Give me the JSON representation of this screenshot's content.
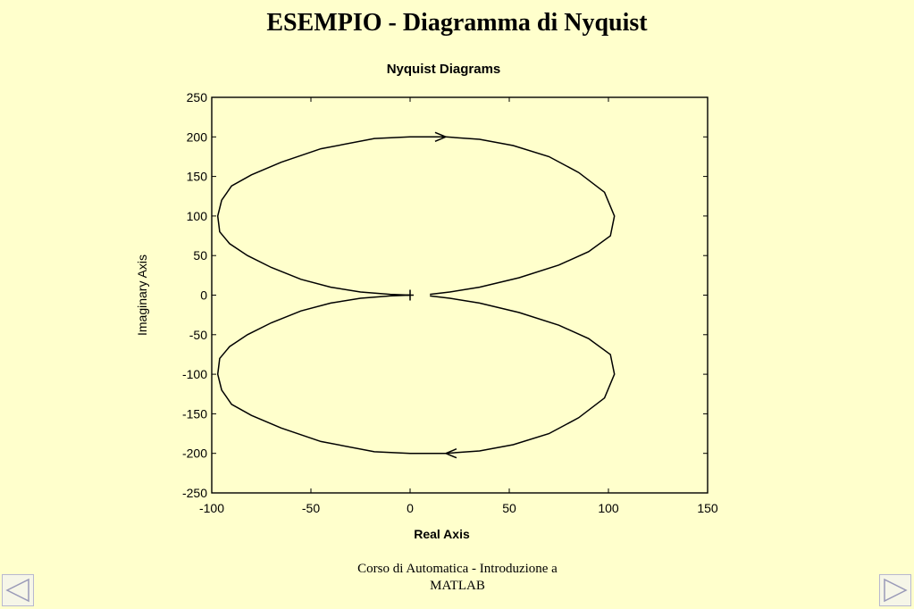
{
  "slide": {
    "title": "ESEMPIO - Diagramma di Nyquist",
    "footer_line1": "Corso di Automatica - Introduzione a",
    "footer_line2": "MATLAB"
  },
  "nav": {
    "prev_icon": "triangle-left-icon",
    "next_icon": "triangle-right-icon"
  },
  "chart_data": {
    "type": "line",
    "title": "Nyquist Diagrams",
    "xlabel": "Real Axis",
    "ylabel": "Imaginary Axis",
    "xlim": [
      -100,
      150
    ],
    "ylim": [
      -250,
      250
    ],
    "xticks": [
      -100,
      -50,
      0,
      50,
      100,
      150
    ],
    "yticks": [
      -250,
      -200,
      -150,
      -100,
      -50,
      0,
      50,
      100,
      150,
      200,
      250
    ],
    "grid": false,
    "series": [
      {
        "values": [
          [
            0,
            0
          ],
          [
            -10,
            1
          ],
          [
            -25,
            4
          ],
          [
            -40,
            10
          ],
          [
            -55,
            20
          ],
          [
            -70,
            35
          ],
          [
            -82,
            50
          ],
          [
            -91,
            65
          ],
          [
            -96,
            80
          ],
          [
            -97,
            100
          ],
          [
            -95,
            120
          ],
          [
            -90,
            138
          ],
          [
            -80,
            152
          ],
          [
            -65,
            168
          ],
          [
            -45,
            185
          ],
          [
            -18,
            198
          ],
          [
            0,
            200
          ],
          [
            18,
            200
          ],
          [
            35,
            197
          ],
          [
            52,
            189
          ],
          [
            70,
            175
          ],
          [
            85,
            155
          ],
          [
            98,
            130
          ],
          [
            103,
            100
          ],
          [
            101,
            75
          ],
          [
            90,
            55
          ],
          [
            75,
            38
          ],
          [
            55,
            22
          ],
          [
            35,
            10
          ],
          [
            20,
            4
          ],
          [
            10,
            1
          ]
        ]
      },
      {
        "values": [
          [
            0,
            0
          ],
          [
            -10,
            -1
          ],
          [
            -25,
            -4
          ],
          [
            -40,
            -10
          ],
          [
            -55,
            -20
          ],
          [
            -70,
            -35
          ],
          [
            -82,
            -50
          ],
          [
            -91,
            -65
          ],
          [
            -96,
            -80
          ],
          [
            -97,
            -100
          ],
          [
            -95,
            -120
          ],
          [
            -90,
            -138
          ],
          [
            -80,
            -152
          ],
          [
            -65,
            -168
          ],
          [
            -45,
            -185
          ],
          [
            -18,
            -198
          ],
          [
            0,
            -200
          ],
          [
            18,
            -200
          ],
          [
            35,
            -197
          ],
          [
            52,
            -189
          ],
          [
            70,
            -175
          ],
          [
            85,
            -155
          ],
          [
            98,
            -130
          ],
          [
            103,
            -100
          ],
          [
            101,
            -75
          ],
          [
            90,
            -55
          ],
          [
            75,
            -38
          ],
          [
            55,
            -22
          ],
          [
            35,
            -10
          ],
          [
            20,
            -4
          ],
          [
            10,
            -1
          ]
        ]
      }
    ],
    "arrows": [
      {
        "x": 18,
        "y": 200,
        "direction": "right"
      },
      {
        "x": 18,
        "y": -200,
        "direction": "left"
      }
    ],
    "marker": {
      "x": 0,
      "y": 0,
      "shape": "+"
    }
  },
  "colors": {
    "background": "#ffffcc",
    "line": "#000000"
  }
}
